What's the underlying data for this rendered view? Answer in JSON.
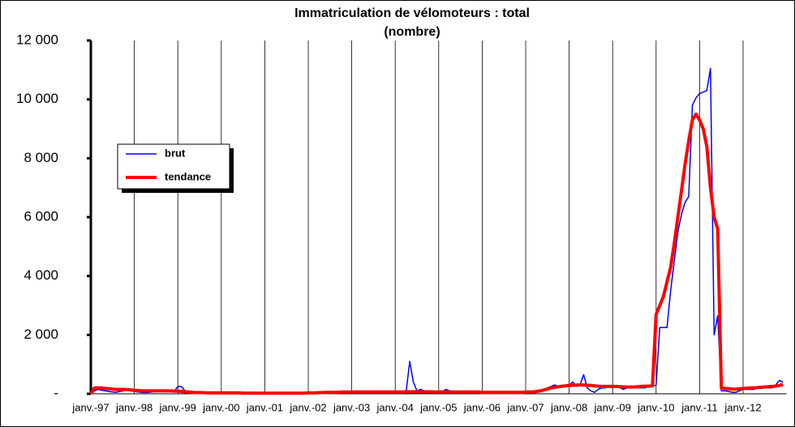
{
  "chart_data": {
    "type": "line",
    "title": "Immatriculation  de vélomoteurs  : total",
    "subtitle": "(nombre)",
    "categories": [
      "janv.-97",
      null,
      null,
      null,
      null,
      null,
      null,
      null,
      null,
      null,
      null,
      null,
      "janv.-98",
      null,
      null,
      null,
      null,
      null,
      null,
      null,
      null,
      null,
      null,
      null,
      "janv.-99",
      null,
      null,
      null,
      null,
      null,
      null,
      null,
      null,
      null,
      null,
      null,
      "janv.-00",
      null,
      null,
      null,
      null,
      null,
      null,
      null,
      null,
      null,
      null,
      null,
      "janv.-01",
      null,
      null,
      null,
      null,
      null,
      null,
      null,
      null,
      null,
      null,
      null,
      "janv.-02",
      null,
      null,
      null,
      null,
      null,
      null,
      null,
      null,
      null,
      null,
      null,
      "janv.-03",
      null,
      null,
      null,
      null,
      null,
      null,
      null,
      null,
      null,
      null,
      null,
      "janv.-04",
      null,
      null,
      null,
      null,
      null,
      null,
      null,
      null,
      null,
      null,
      null,
      "janv.-05",
      null,
      null,
      null,
      null,
      null,
      null,
      null,
      null,
      null,
      null,
      null,
      "janv.-06",
      null,
      null,
      null,
      null,
      null,
      null,
      null,
      null,
      null,
      null,
      null,
      "janv.-07",
      null,
      null,
      null,
      null,
      null,
      null,
      null,
      null,
      null,
      null,
      null,
      "janv.-08",
      null,
      null,
      null,
      null,
      null,
      null,
      null,
      null,
      null,
      null,
      null,
      "janv.-09",
      null,
      null,
      null,
      null,
      null,
      null,
      null,
      null,
      null,
      null,
      null,
      "janv.-10",
      null,
      null,
      null,
      null,
      null,
      null,
      null,
      null,
      null,
      null,
      null,
      "janv.-11",
      null,
      null,
      null,
      null,
      null,
      null,
      null,
      null,
      null,
      null,
      null,
      "janv.-12",
      null,
      null,
      null,
      null,
      null,
      null,
      null,
      null,
      null,
      null,
      null
    ],
    "series": [
      {
        "name": "brut",
        "color": "#0000ff",
        "width": 1.5,
        "values": [
          0,
          100,
          150,
          120,
          100,
          80,
          60,
          50,
          80,
          100,
          120,
          100,
          80,
          60,
          50,
          40,
          50,
          60,
          80,
          100,
          90,
          100,
          120,
          80,
          250,
          240,
          100,
          60,
          40,
          30,
          30,
          20,
          20,
          20,
          20,
          20,
          20,
          20,
          20,
          20,
          20,
          10,
          10,
          10,
          10,
          10,
          10,
          10,
          10,
          10,
          10,
          10,
          10,
          10,
          10,
          10,
          10,
          10,
          10,
          10,
          10,
          10,
          10,
          20,
          20,
          30,
          30,
          40,
          40,
          40,
          50,
          50,
          50,
          50,
          50,
          60,
          60,
          60,
          50,
          50,
          60,
          60,
          60,
          60,
          60,
          60,
          60,
          60,
          1100,
          400,
          100,
          150,
          100,
          60,
          50,
          60,
          60,
          80,
          150,
          100,
          80,
          60,
          50,
          50,
          50,
          50,
          50,
          50,
          50,
          50,
          50,
          50,
          60,
          60,
          60,
          80,
          60,
          60,
          50,
          60,
          60,
          60,
          60,
          80,
          100,
          150,
          200,
          250,
          300,
          250,
          250,
          300,
          300,
          400,
          250,
          300,
          650,
          200,
          100,
          50,
          150,
          200,
          200,
          250,
          200,
          250,
          200,
          150,
          200,
          200,
          200,
          200,
          200,
          200,
          250,
          250,
          300,
          2250,
          2250,
          2250,
          3500,
          4500,
          5500,
          6100,
          6500,
          6700,
          9800,
          10050,
          10200,
          10250,
          10300,
          11050,
          2000,
          2650,
          100,
          100,
          80,
          50,
          50,
          100,
          150,
          150,
          150,
          150,
          200,
          250,
          200,
          200,
          200,
          300,
          450,
          400
        ]
      },
      {
        "name": "tendance",
        "color": "#ff0000",
        "width": 4,
        "values": [
          0,
          200,
          200,
          200,
          180,
          170,
          160,
          150,
          150,
          150,
          140,
          130,
          120,
          110,
          100,
          100,
          100,
          100,
          100,
          100,
          100,
          100,
          100,
          90,
          90,
          80,
          70,
          60,
          50,
          40,
          40,
          40,
          30,
          30,
          30,
          30,
          30,
          30,
          30,
          30,
          30,
          30,
          20,
          20,
          20,
          20,
          20,
          20,
          20,
          20,
          20,
          20,
          20,
          20,
          20,
          20,
          20,
          20,
          20,
          20,
          30,
          30,
          30,
          40,
          40,
          50,
          50,
          50,
          50,
          60,
          60,
          60,
          60,
          60,
          60,
          60,
          60,
          60,
          60,
          60,
          60,
          60,
          60,
          60,
          60,
          60,
          60,
          70,
          70,
          70,
          70,
          70,
          70,
          70,
          70,
          60,
          60,
          60,
          60,
          60,
          60,
          60,
          60,
          60,
          60,
          60,
          60,
          60,
          50,
          50,
          50,
          50,
          50,
          50,
          50,
          50,
          50,
          50,
          50,
          50,
          60,
          60,
          60,
          80,
          100,
          130,
          160,
          200,
          220,
          240,
          260,
          270,
          280,
          290,
          300,
          300,
          300,
          290,
          280,
          270,
          260,
          250,
          250,
          250,
          250,
          250,
          240,
          230,
          230,
          230,
          230,
          240,
          250,
          260,
          260,
          270,
          2700,
          3000,
          3300,
          3800,
          4300,
          5100,
          6000,
          6900,
          7800,
          8600,
          9300,
          9500,
          9300,
          9000,
          8400,
          7000,
          6000,
          5600,
          200,
          180,
          170,
          160,
          160,
          170,
          180,
          190,
          200,
          200,
          210,
          220,
          230,
          240,
          250,
          260,
          280,
          320
        ]
      }
    ],
    "ylim": [
      0,
      12000
    ],
    "yticks": [
      {
        "value": 0,
        "label": "-"
      },
      {
        "value": 2000,
        "label": "2 000"
      },
      {
        "value": 4000,
        "label": "4 000"
      },
      {
        "value": 6000,
        "label": "6 000"
      },
      {
        "value": 8000,
        "label": "8 000"
      },
      {
        "value": 10000,
        "label": "10 000"
      },
      {
        "value": 12000,
        "label": "12 000"
      }
    ],
    "grid": true
  }
}
